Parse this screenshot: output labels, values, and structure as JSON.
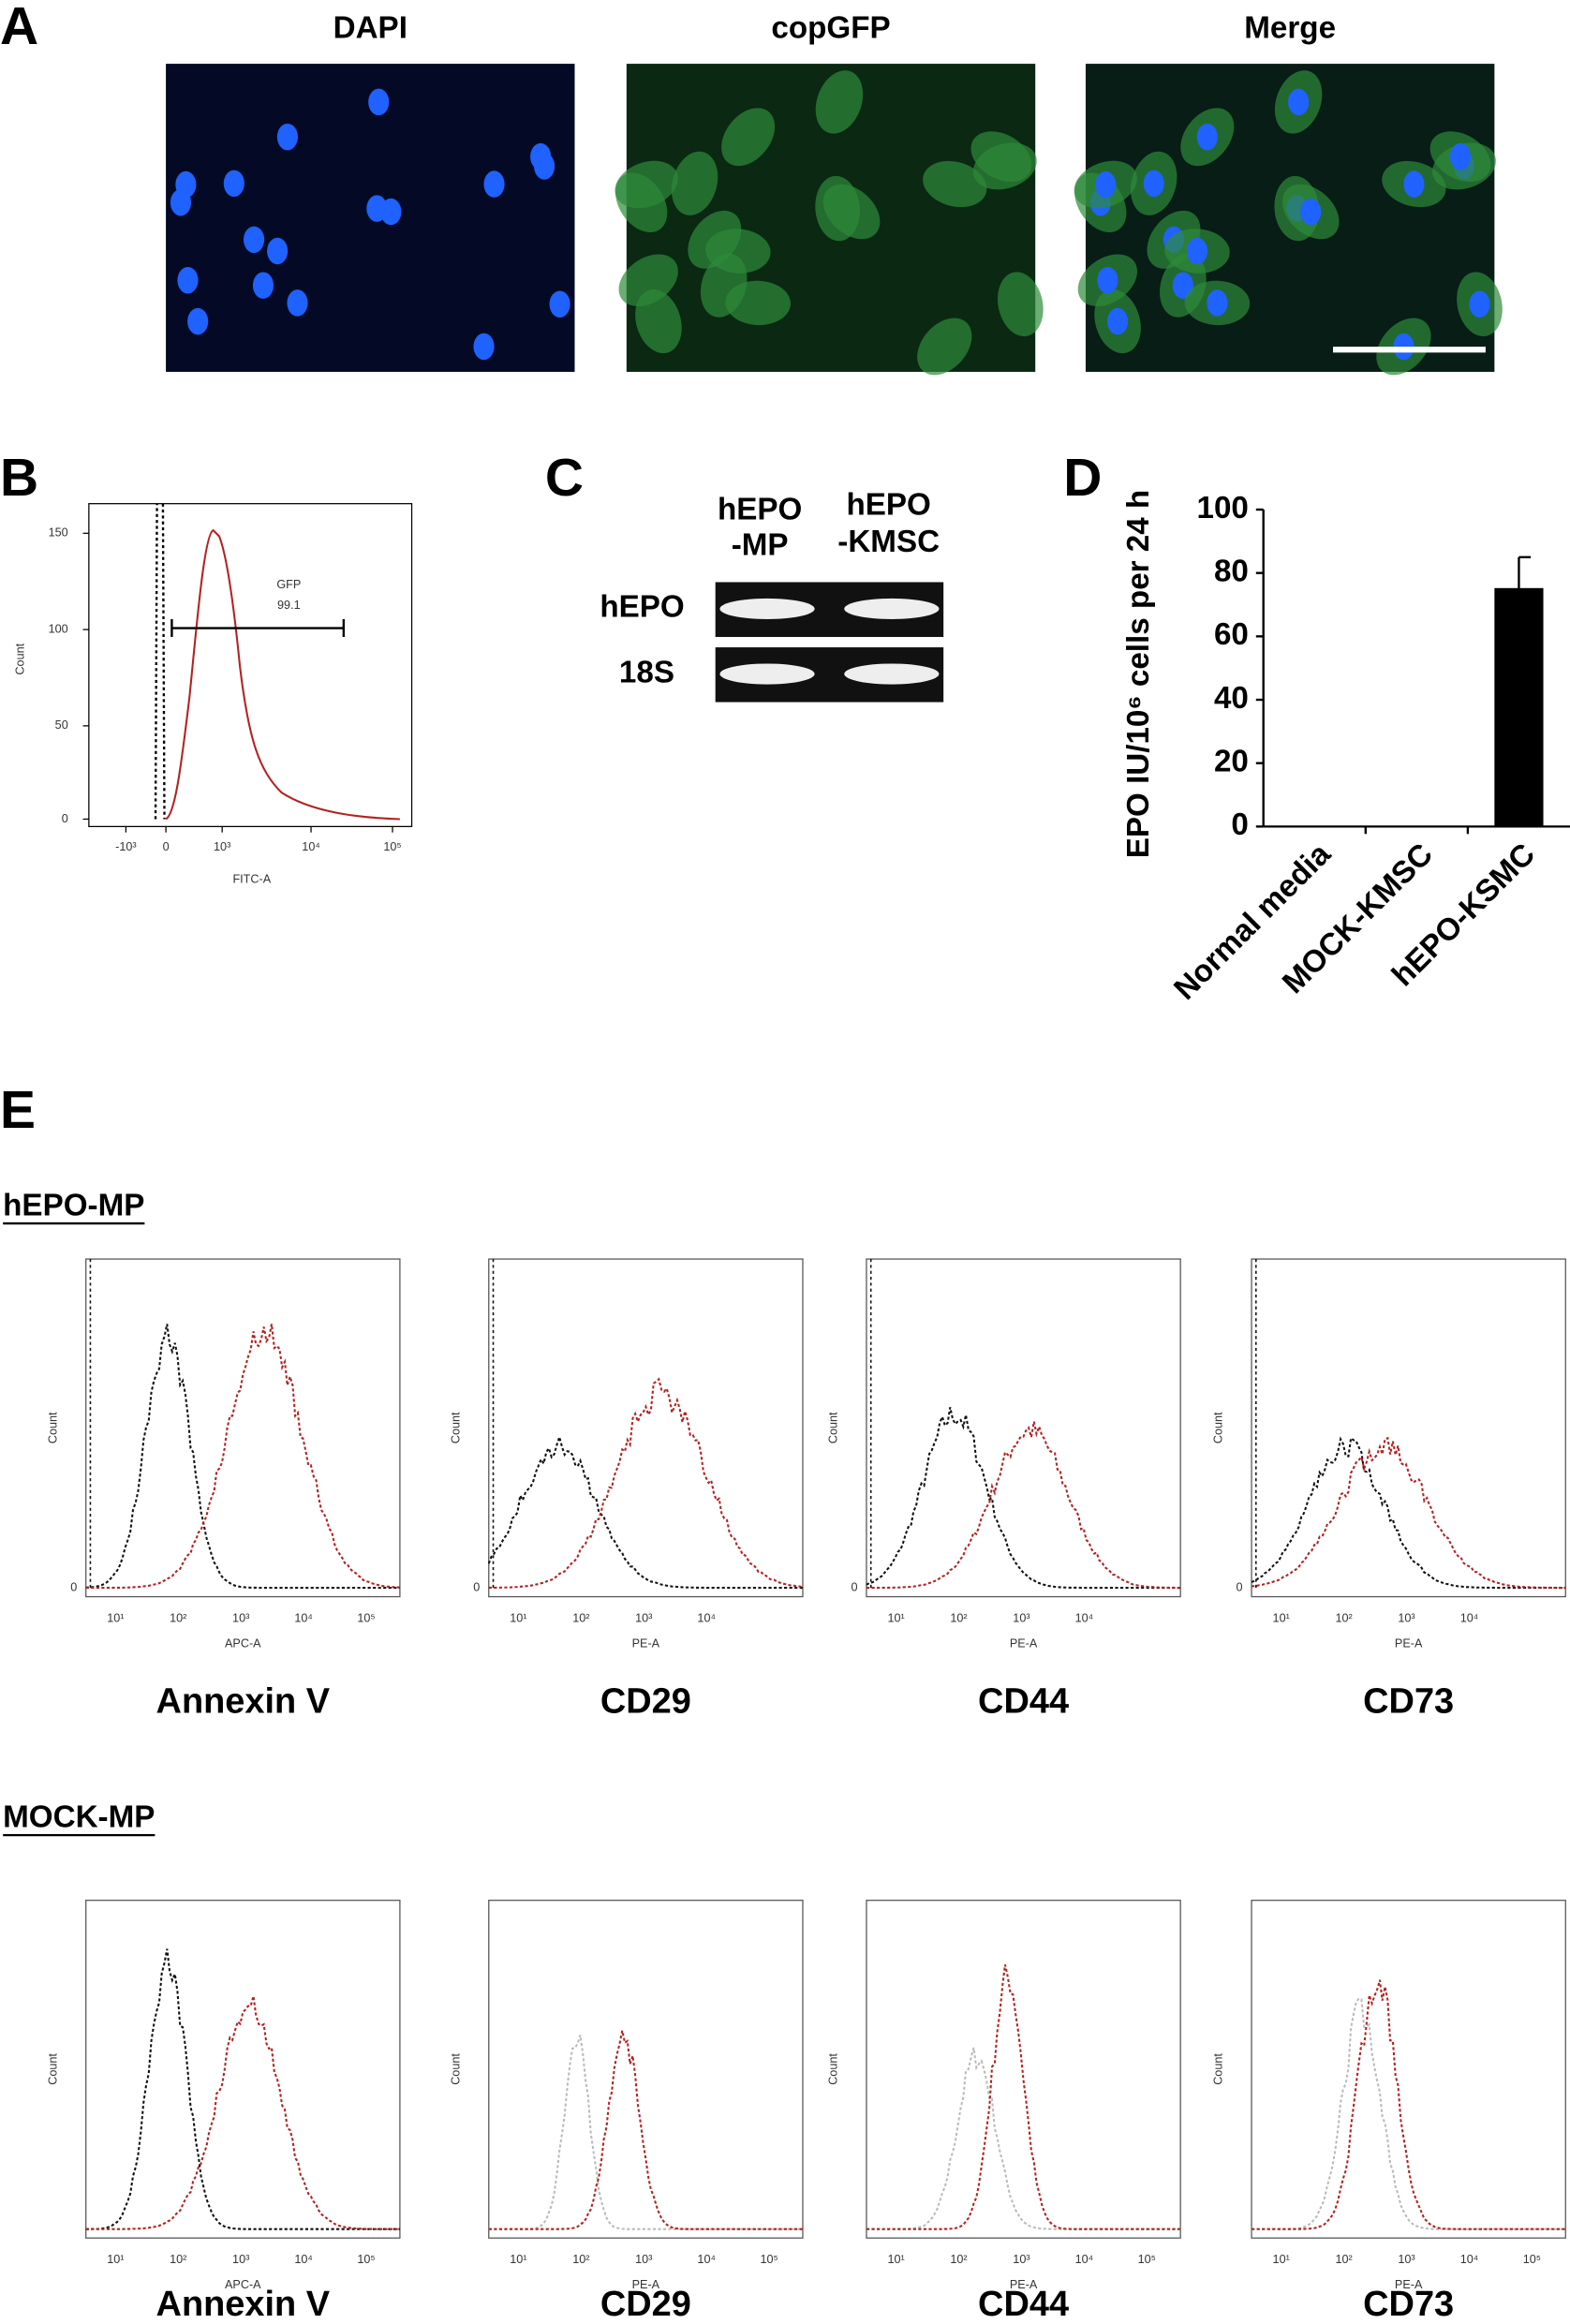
{
  "panel_a": {
    "label": "A",
    "channels": [
      "DAPI",
      "copGFP",
      "Merge"
    ]
  },
  "panel_b": {
    "label": "B",
    "y_axis_label": "Count",
    "x_axis_label": "FITC-A",
    "gate_name": "GFP",
    "gate_value": "99.1",
    "yticks": [
      150,
      100,
      50,
      0
    ],
    "xticks": [
      "-10³",
      "0",
      "10³",
      "10⁴",
      "10⁵"
    ]
  },
  "panel_c": {
    "label": "C",
    "columns": [
      [
        "hEPO",
        "-MP"
      ],
      [
        "hEPO",
        "-KMSC"
      ]
    ],
    "rows": [
      "hEPO",
      "18S"
    ]
  },
  "panel_d_label": "D",
  "chart_data": {
    "type": "bar",
    "y_axis_label": "EPO IU/10⁶ cells per 24 h",
    "categories": [
      "Normal media",
      "MOCK-KMSC",
      "hEPO-KSMC"
    ],
    "values": [
      0,
      0,
      75
    ],
    "errors": [
      0,
      0,
      10
    ],
    "color": "#000000",
    "ylim": [
      0,
      100
    ],
    "yticks": [
      0,
      20,
      40,
      60,
      80,
      100
    ]
  },
  "panel_e": {
    "label": "E",
    "groups": [
      {
        "title": "hEPO-MP",
        "plots": [
          {
            "marker": "Annexin V",
            "x_axis_label": "APC-A",
            "y_axis_label": "Count",
            "y_zero": "0",
            "xticks": [
              "10¹",
              "10²",
              "10³",
              "10⁴",
              "10⁵"
            ]
          },
          {
            "marker": "CD29",
            "x_axis_label": "PE-A",
            "y_axis_label": "Count",
            "y_zero": "0",
            "xticks": [
              "10¹",
              "10²",
              "10³",
              "10⁴"
            ]
          },
          {
            "marker": "CD44",
            "x_axis_label": "PE-A",
            "y_axis_label": "Count",
            "y_zero": "0",
            "xticks": [
              "10¹",
              "10²",
              "10³",
              "10⁴"
            ]
          },
          {
            "marker": "CD73",
            "x_axis_label": "PE-A",
            "y_axis_label": "Count",
            "y_zero": "0",
            "xticks": [
              "10¹",
              "10²",
              "10³",
              "10⁴"
            ]
          }
        ]
      },
      {
        "title": "MOCK-MP",
        "plots": [
          {
            "marker": "Annexin V",
            "x_axis_label": "APC-A",
            "y_axis_label": "Count",
            "xticks": [
              "10¹",
              "10²",
              "10³",
              "10⁴",
              "10⁵"
            ]
          },
          {
            "marker": "CD29",
            "x_axis_label": "PE-A",
            "y_axis_label": "Count",
            "xticks": [
              "10¹",
              "10²",
              "10³",
              "10⁴",
              "10⁵"
            ]
          },
          {
            "marker": "CD44",
            "x_axis_label": "PE-A",
            "y_axis_label": "Count",
            "xticks": [
              "10¹",
              "10²",
              "10³",
              "10⁴",
              "10⁵"
            ]
          },
          {
            "marker": "CD73",
            "x_axis_label": "PE-A",
            "y_axis_label": "Count",
            "xticks": [
              "10¹",
              "10²",
              "10³",
              "10⁴",
              "10⁵"
            ]
          }
        ]
      }
    ]
  }
}
